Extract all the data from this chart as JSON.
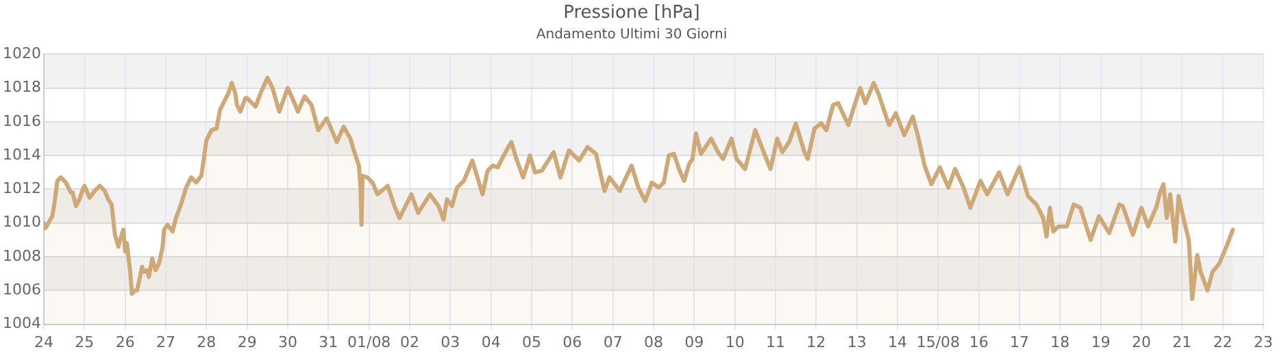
{
  "chart_data": {
    "type": "area",
    "title": "Pressione [hPa]",
    "subtitle": "Andamento Ultimi 30 Giorni",
    "xlim": [
      "--07-24",
      "--08-23"
    ],
    "xticks": [
      {
        "value": "--07-24",
        "label": "24"
      },
      {
        "value": "--07-25",
        "label": "25"
      },
      {
        "value": "--07-26",
        "label": "26"
      },
      {
        "value": "--07-27",
        "label": "27"
      },
      {
        "value": "--07-28",
        "label": "28"
      },
      {
        "value": "--07-29",
        "label": "29"
      },
      {
        "value": "--07-30",
        "label": "30"
      },
      {
        "value": "--07-31",
        "label": "31"
      },
      {
        "value": "--08-01",
        "label": "01/08"
      },
      {
        "value": "--08-02",
        "label": "02"
      },
      {
        "value": "--08-03",
        "label": "03"
      },
      {
        "value": "--08-04",
        "label": "04"
      },
      {
        "value": "--08-05",
        "label": "05"
      },
      {
        "value": "--08-06",
        "label": "06"
      },
      {
        "value": "--08-07",
        "label": "07"
      },
      {
        "value": "--08-08",
        "label": "08"
      },
      {
        "value": "--08-09",
        "label": "09"
      },
      {
        "value": "--08-10",
        "label": "10"
      },
      {
        "value": "--08-11",
        "label": "11"
      },
      {
        "value": "--08-12",
        "label": "12"
      },
      {
        "value": "--08-13",
        "label": "13"
      },
      {
        "value": "--08-14",
        "label": "14"
      },
      {
        "value": "--08-15",
        "label": "15/08"
      },
      {
        "value": "--08-16",
        "label": "16"
      },
      {
        "value": "--08-17",
        "label": "17"
      },
      {
        "value": "--08-18",
        "label": "18"
      },
      {
        "value": "--08-19",
        "label": "19"
      },
      {
        "value": "--08-20",
        "label": "20"
      },
      {
        "value": "--08-21",
        "label": "21"
      },
      {
        "value": "--08-22",
        "label": "22"
      },
      {
        "value": "--08-23",
        "label": "23"
      }
    ],
    "ylim": [
      1004,
      1020
    ],
    "yticks": [
      1004,
      1006,
      1008,
      1010,
      1012,
      1014,
      1016,
      1018,
      1020
    ],
    "grid": true,
    "legend": false,
    "marker": "none",
    "line_style": "solid",
    "series": [
      {
        "color": "#cfa877",
        "x": [
          "--07-24T00:00",
          "--07-24T01:00",
          "--07-24T05:00",
          "--07-24T06:00",
          "--07-24T08:00",
          "--07-24T10:00",
          "--07-24T13:00",
          "--07-24T16:00",
          "--07-24T17:00",
          "--07-24T19:00",
          "--07-24T21:00",
          "--07-24T23:00",
          "--07-25T00:00",
          "--07-25T03:00",
          "--07-25T06:00",
          "--07-25T09:00",
          "--07-25T12:00",
          "--07-25T14:00",
          "--07-25T16:00",
          "--07-25T17:00",
          "--07-25T18:00",
          "--07-25T20:00",
          "--07-25T21:00",
          "--07-25T23:00",
          "--07-26T00:00",
          "--07-26T01:00",
          "--07-26T03:00",
          "--07-26T04:00",
          "--07-26T06:00",
          "--07-26T07:00",
          "--07-26T10:00",
          "--07-26T11:00",
          "--07-26T13:00",
          "--07-26T14:00",
          "--07-26T16:00",
          "--07-26T18:00",
          "--07-26T20:00",
          "--07-26T22:00",
          "--07-26T23:00",
          "--07-27T01:00",
          "--07-27T04:00",
          "--07-27T06:00",
          "--07-27T09:00",
          "--07-27T12:00",
          "--07-27T15:00",
          "--07-27T18:00",
          "--07-27T21:00",
          "--07-27T22:00",
          "--07-28T00:00",
          "--07-28T03:00",
          "--07-28T06:00",
          "--07-28T08:00",
          "--07-28T11:00",
          "--07-28T13:00",
          "--07-28T15:00",
          "--07-28T17:00",
          "--07-28T18:00",
          "--07-28T20:00",
          "--07-28T23:00",
          "--07-29T00:00",
          "--07-29T05:00",
          "--07-29T08:00",
          "--07-29T12:00",
          "--07-29T15:00",
          "--07-29T19:00",
          "--07-30T00:00",
          "--07-30T04:00",
          "--07-30T06:00",
          "--07-30T10:00",
          "--07-30T14:00",
          "--07-30T18:00",
          "--07-30T23:00",
          "--07-31T02:00",
          "--07-31T05:00",
          "--07-31T09:00",
          "--07-31T13:00",
          "--07-31T15:00",
          "--07-31T18:00",
          "--07-31T19:00",
          "--07-31T19:30",
          "--07-31T20:10",
          "--07-31T23:00",
          "--08-01T02:00",
          "--08-01T05:00",
          "--08-01T11:00",
          "--08-01T15:00",
          "--08-01T18:00",
          "--08-02T01:00",
          "--08-02T05:00",
          "--08-02T12:00",
          "--08-02T17:00",
          "--08-02T20:00",
          "--08-02T22:00",
          "--08-03T01:00",
          "--08-03T04:00",
          "--08-03T08:00",
          "--08-03T13:00",
          "--08-03T16:00",
          "--08-03T19:00",
          "--08-03T22:00",
          "--08-04T01:00",
          "--08-04T04:00",
          "--08-04T08:00",
          "--08-04T12:00",
          "--08-04T15:00",
          "--08-04T19:00",
          "--08-04T23:00",
          "--08-05T02:00",
          "--08-05T06:00",
          "--08-05T13:00",
          "--08-05T17:00",
          "--08-05T22:00",
          "--08-06T04:00",
          "--08-06T09:00",
          "--08-06T14:00",
          "--08-06T19:00",
          "--08-06T22:00",
          "--08-07T04:00",
          "--08-07T11:00",
          "--08-07T15:00",
          "--08-07T19:00",
          "--08-07T23:00",
          "--08-08T03:00",
          "--08-08T06:00",
          "--08-08T09:00",
          "--08-08T12:00",
          "--08-08T15:00",
          "--08-08T18:00",
          "--08-08T21:00",
          "--08-08T23:00",
          "--08-09T01:00",
          "--08-09T04:00",
          "--08-09T10:00",
          "--08-09T14:00",
          "--08-09T17:00",
          "--08-09T22:00",
          "--08-10T01:00",
          "--08-10T06:00",
          "--08-10T12:00",
          "--08-10T17:00",
          "--08-10T21:00",
          "--08-11T01:00",
          "--08-11T04:00",
          "--08-11T08:00",
          "--08-11T12:00",
          "--08-11T17:00",
          "--08-11T19:00",
          "--08-11T23:00",
          "--08-12T03:00",
          "--08-12T06:00",
          "--08-12T10:00",
          "--08-12T13:00",
          "--08-12T19:00",
          "--08-12T23:00",
          "--08-13T02:00",
          "--08-13T05:00",
          "--08-13T10:00",
          "--08-13T13:00",
          "--08-13T19:00",
          "--08-13T23:00",
          "--08-14T04:00",
          "--08-14T09:00",
          "--08-14T12:00",
          "--08-14T16:00",
          "--08-14T20:00",
          "--08-15T01:00",
          "--08-15T06:00",
          "--08-15T10:00",
          "--08-15T15:00",
          "--08-15T19:00",
          "--08-16T01:00",
          "--08-16T05:00",
          "--08-16T12:00",
          "--08-16T17:00",
          "--08-17T00:00",
          "--08-17T05:00",
          "--08-17T10:00",
          "--08-17T14:00",
          "--08-17T16:00",
          "--08-17T18:00",
          "--08-17T20:00",
          "--08-17T23:00",
          "--08-18T04:00",
          "--08-18T08:00",
          "--08-18T12:00",
          "--08-18T18:00",
          "--08-18T23:00",
          "--08-19T05:00",
          "--08-19T11:00",
          "--08-19T13:00",
          "--08-19T19:00",
          "--08-20T00:00",
          "--08-20T04:00",
          "--08-20T09:00",
          "--08-20T11:00",
          "--08-20T13:00",
          "--08-20T15:00",
          "--08-20T17:00",
          "--08-20T20:00",
          "--08-20T22:00",
          "--08-21T01:00",
          "--08-21T04:00",
          "--08-21T06:00",
          "--08-21T09:00",
          "--08-21T11:00",
          "--08-21T15:00",
          "--08-21T18:00",
          "--08-21T22:00",
          "--08-22T03:00",
          "--08-22T06:00"
        ],
        "values": [
          1010.0,
          1009.7,
          1010.4,
          1011.0,
          1012.5,
          1012.7,
          1012.4,
          1011.8,
          1011.8,
          1011.0,
          1011.4,
          1012.0,
          1012.2,
          1011.5,
          1011.9,
          1012.2,
          1011.9,
          1011.4,
          1011.1,
          1010.2,
          1009.3,
          1008.6,
          1009.0,
          1009.6,
          1008.3,
          1008.8,
          1007.1,
          1005.8,
          1006.0,
          1006.0,
          1007.4,
          1007.1,
          1007.2,
          1006.8,
          1007.9,
          1007.2,
          1007.6,
          1008.5,
          1009.6,
          1009.9,
          1009.5,
          1010.3,
          1011.1,
          1012.1,
          1012.7,
          1012.4,
          1012.8,
          1013.5,
          1014.9,
          1015.5,
          1015.6,
          1016.7,
          1017.3,
          1017.7,
          1018.3,
          1017.7,
          1017.0,
          1016.6,
          1017.4,
          1017.4,
          1016.9,
          1017.7,
          1018.6,
          1018.0,
          1016.6,
          1018.0,
          1017.1,
          1016.6,
          1017.5,
          1017.0,
          1015.5,
          1016.2,
          1015.5,
          1014.8,
          1015.7,
          1015.0,
          1014.3,
          1013.4,
          1012.1,
          1009.9,
          1012.8,
          1012.7,
          1012.4,
          1011.7,
          1012.2,
          1011.0,
          1010.3,
          1011.7,
          1010.6,
          1011.7,
          1011.0,
          1010.2,
          1011.4,
          1011.0,
          1012.1,
          1012.5,
          1013.7,
          1012.7,
          1011.7,
          1013.1,
          1013.4,
          1013.3,
          1014.1,
          1014.8,
          1013.8,
          1012.7,
          1014.0,
          1013.0,
          1013.1,
          1014.2,
          1012.7,
          1014.3,
          1013.7,
          1014.5,
          1014.1,
          1011.9,
          1012.7,
          1011.9,
          1013.4,
          1012.1,
          1011.3,
          1012.4,
          1012.1,
          1012.4,
          1014.0,
          1014.1,
          1013.2,
          1012.5,
          1013.5,
          1013.8,
          1015.3,
          1014.1,
          1015.0,
          1014.2,
          1013.8,
          1015.0,
          1013.8,
          1013.2,
          1015.5,
          1014.2,
          1013.2,
          1015.0,
          1014.2,
          1014.8,
          1015.9,
          1014.2,
          1013.8,
          1015.6,
          1015.9,
          1015.5,
          1017.0,
          1017.1,
          1015.8,
          1017.1,
          1018.0,
          1017.1,
          1018.3,
          1017.6,
          1015.8,
          1016.5,
          1015.2,
          1016.3,
          1015.2,
          1013.4,
          1012.3,
          1013.3,
          1012.1,
          1013.2,
          1012.1,
          1010.9,
          1012.5,
          1011.7,
          1013.0,
          1011.7,
          1013.3,
          1011.6,
          1011.1,
          1010.3,
          1009.2,
          1010.9,
          1009.5,
          1009.8,
          1009.8,
          1011.1,
          1010.9,
          1009.0,
          1010.4,
          1009.4,
          1011.1,
          1011.0,
          1009.3,
          1010.9,
          1009.8,
          1011.0,
          1011.8,
          1012.3,
          1010.3,
          1011.7,
          1008.9,
          1011.6,
          1010.2,
          1009.0,
          1005.5,
          1008.1,
          1007.1,
          1006.0,
          1007.1,
          1007.6,
          1008.8,
          1009.6
        ]
      }
    ]
  }
}
